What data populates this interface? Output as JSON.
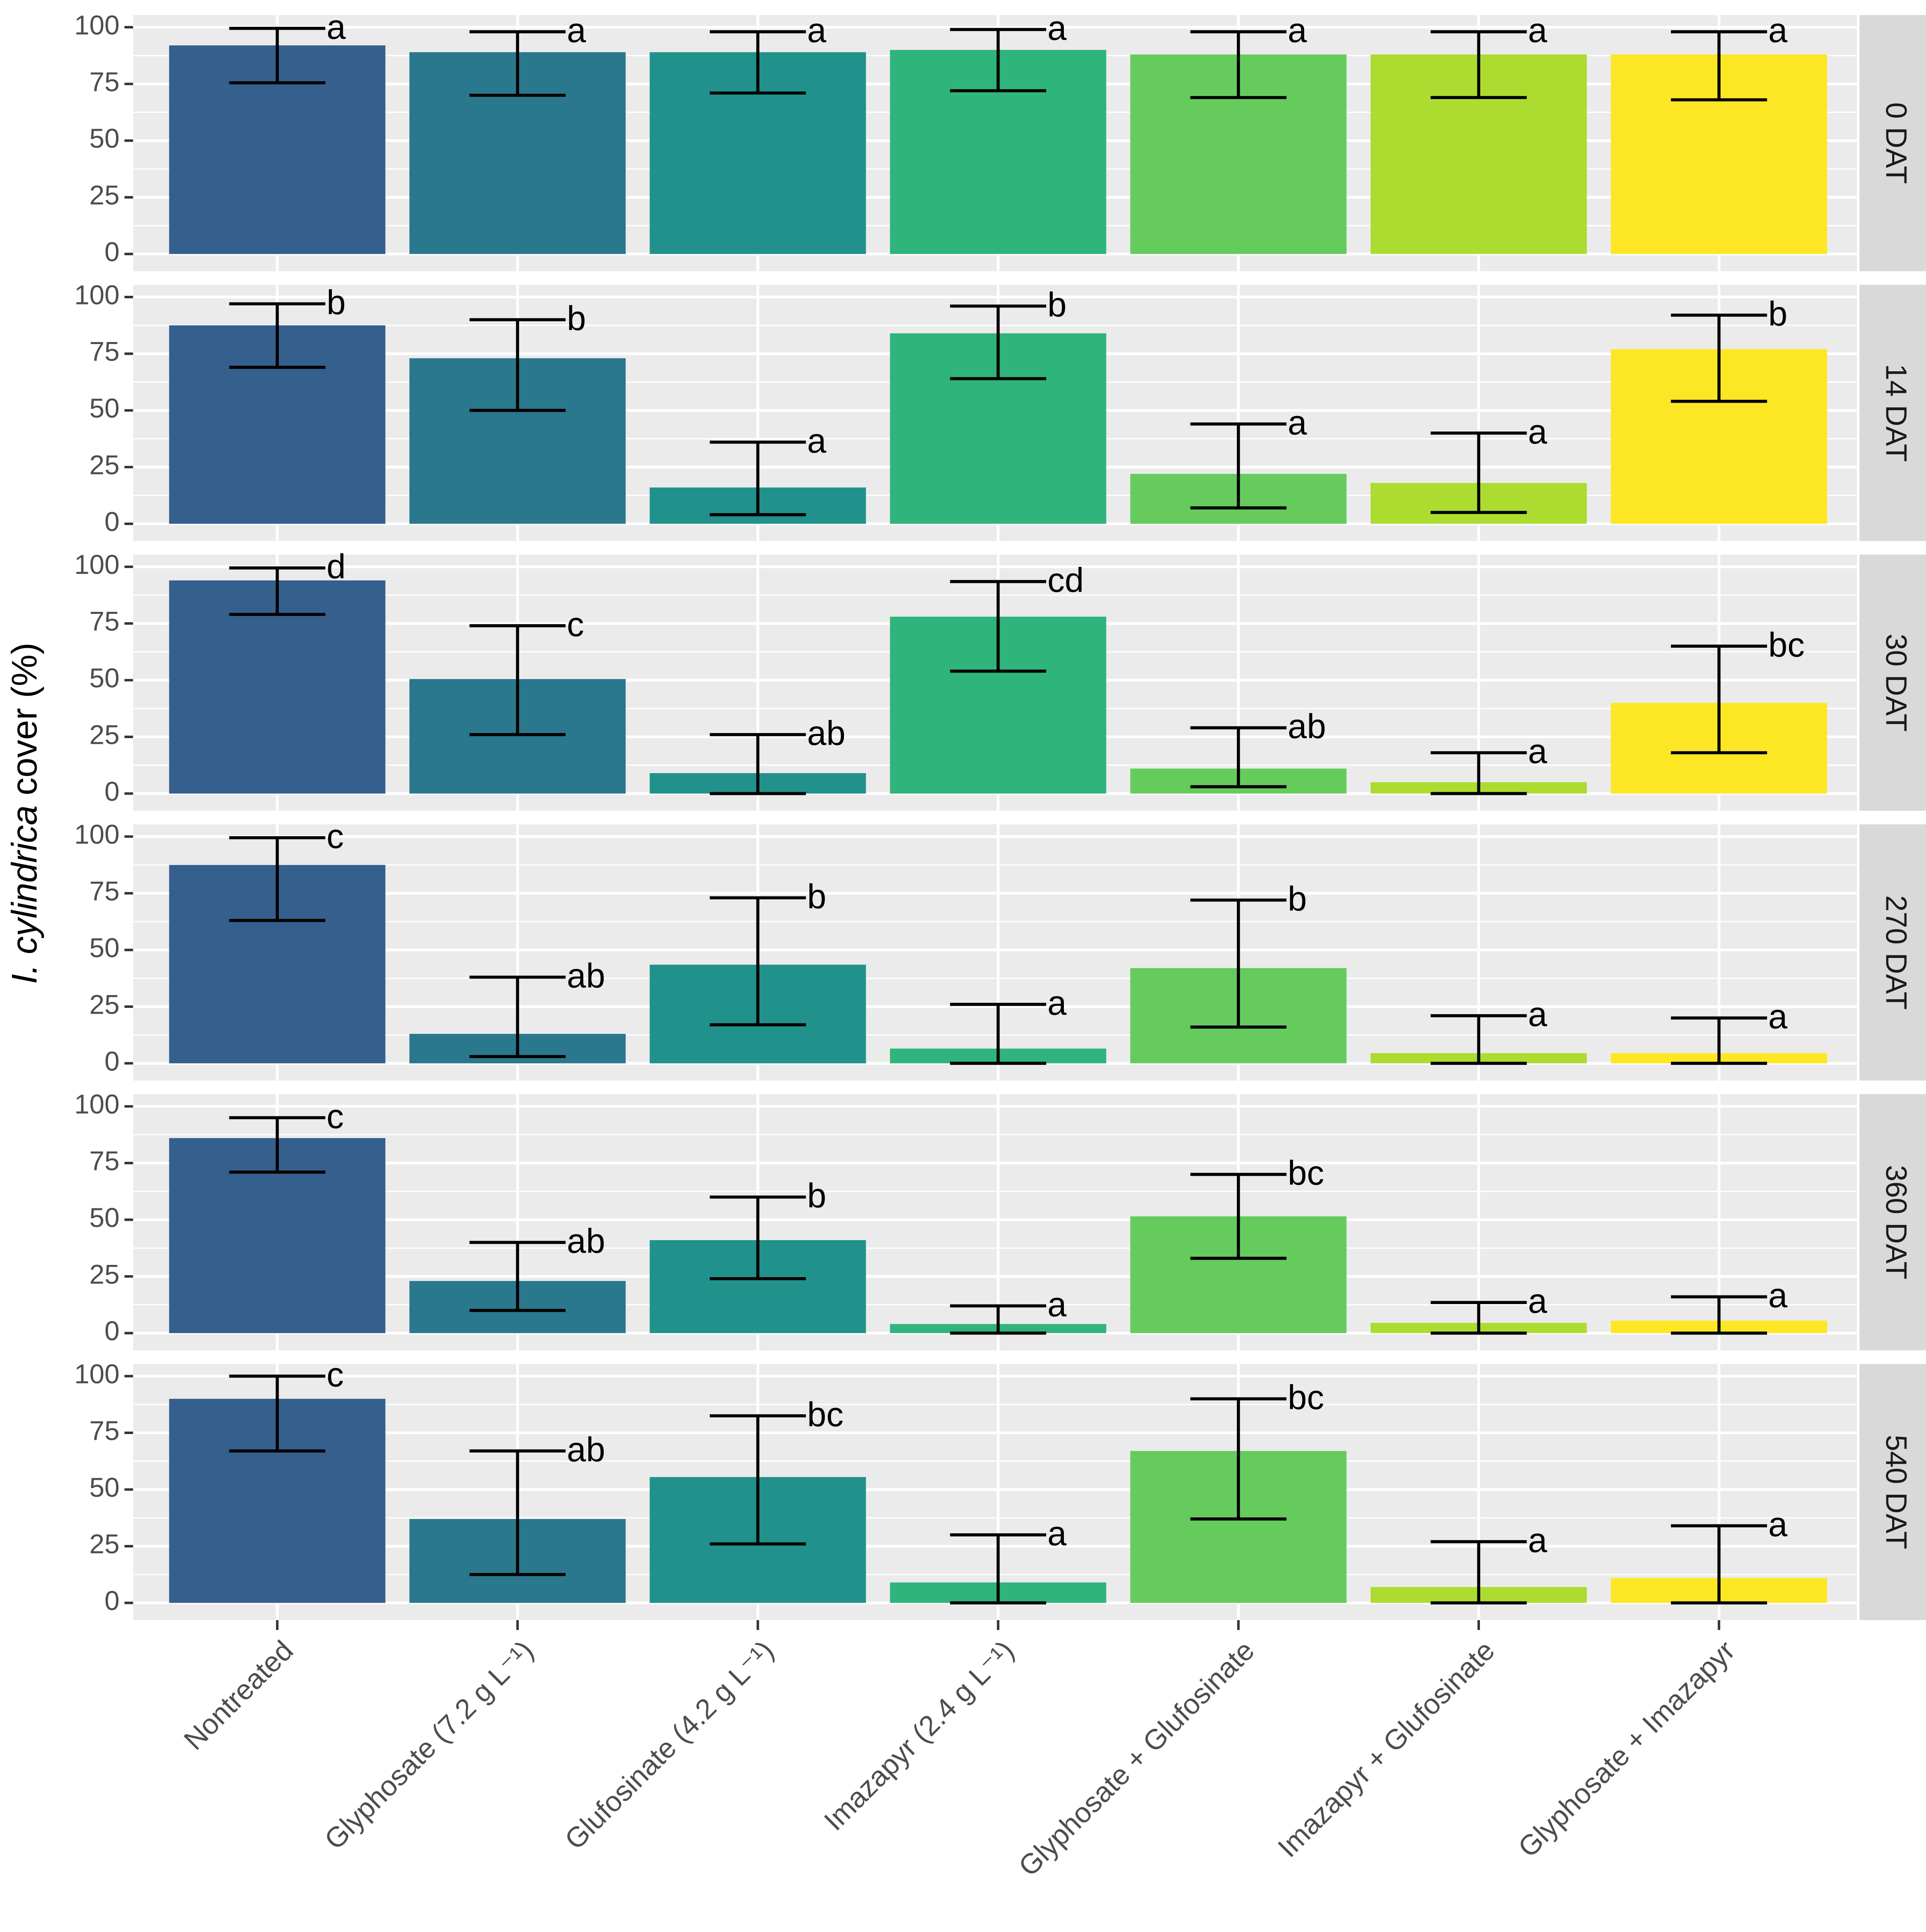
{
  "chart_data": {
    "type": "bar",
    "ylabel": {
      "italic": "I. cylindrica",
      "rest": "cover (%)"
    },
    "categories": [
      "Nontreated",
      "Glyphosate (7.2 g L⁻¹)",
      "Glufosinate (4.2 g L⁻¹)",
      "Imazapyr (2.4 g L⁻¹)",
      "Glyphosate + Glufosinate",
      "Imazapyr + Glufosinate",
      "Glyphosate + Imazapyr"
    ],
    "colors": [
      "#355f8d",
      "#2a788e",
      "#21918c",
      "#2fb47c",
      "#66cb5d",
      "#addc30",
      "#fde725"
    ],
    "ylim": [
      -7.6,
      105.4
    ],
    "yticks": [
      0,
      25,
      50,
      75,
      100
    ],
    "grid": true,
    "facets": [
      {
        "name": "0 DAT",
        "values": [
          92,
          89,
          89,
          90,
          88,
          88,
          88
        ],
        "lower": [
          75.5,
          70,
          71,
          72,
          69,
          69,
          68
        ],
        "upper": [
          99.5,
          98,
          98,
          99,
          98,
          98,
          98
        ],
        "letters": [
          "a",
          "a",
          "a",
          "a",
          "a",
          "a",
          "a"
        ]
      },
      {
        "name": "14 DAT",
        "values": [
          87.5,
          73,
          16,
          84,
          22,
          18,
          77
        ],
        "lower": [
          69,
          50,
          4,
          64,
          7,
          5,
          54
        ],
        "upper": [
          97,
          90,
          36,
          96,
          44,
          40,
          92
        ],
        "letters": [
          "b",
          "b",
          "a",
          "b",
          "a",
          "a",
          "b"
        ]
      },
      {
        "name": "30 DAT",
        "values": [
          94,
          50.5,
          9,
          78,
          11,
          5,
          40
        ],
        "lower": [
          79,
          26,
          0,
          54,
          3,
          0,
          18
        ],
        "upper": [
          99.5,
          74,
          26,
          93.5,
          29,
          18,
          65
        ],
        "letters": [
          "d",
          "c",
          "ab",
          "cd",
          "ab",
          "a",
          "bc"
        ]
      },
      {
        "name": "270 DAT",
        "values": [
          87.5,
          13,
          43.5,
          6.5,
          42,
          4.5,
          4.5
        ],
        "lower": [
          63,
          3,
          17,
          0,
          16,
          0,
          0
        ],
        "upper": [
          99.5,
          38,
          73,
          26,
          72,
          21,
          20
        ],
        "letters": [
          "c",
          "ab",
          "b",
          "a",
          "b",
          "a",
          "a"
        ]
      },
      {
        "name": "360 DAT",
        "values": [
          86,
          23,
          41,
          4,
          51.5,
          4.5,
          5.5
        ],
        "lower": [
          71,
          10,
          24,
          0,
          33,
          0,
          0
        ],
        "upper": [
          95,
          40,
          60,
          12,
          70,
          13.5,
          16
        ],
        "letters": [
          "c",
          "ab",
          "b",
          "a",
          "bc",
          "a",
          "a"
        ]
      },
      {
        "name": "540 DAT",
        "values": [
          90,
          37,
          55.5,
          9,
          67,
          7,
          11
        ],
        "lower": [
          67,
          12.5,
          26,
          0,
          37,
          0,
          0
        ],
        "upper": [
          100,
          67,
          82.5,
          30,
          90,
          27,
          34
        ],
        "letters": [
          "c",
          "ab",
          "bc",
          "a",
          "bc",
          "a",
          "a"
        ]
      }
    ]
  }
}
